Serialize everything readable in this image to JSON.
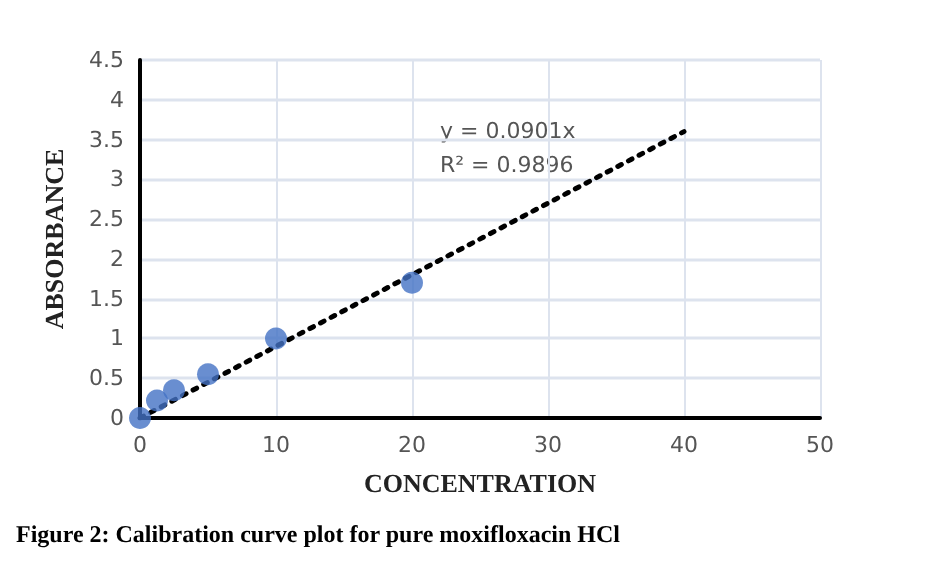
{
  "chart_data": {
    "type": "scatter",
    "xlabel": "CONCENTRATION",
    "ylabel": "ABSORBANCE",
    "xlim": [
      0,
      50
    ],
    "xticks": [
      0,
      10,
      20,
      30,
      40,
      50
    ],
    "ylim": [
      0,
      4.5
    ],
    "yticks": [
      0,
      0.5,
      1,
      1.5,
      2,
      2.5,
      3,
      3.5,
      4,
      4.5
    ],
    "grid": true,
    "marker": "circle",
    "series": [
      {
        "color": "#4472c4",
        "x": [
          0,
          1.25,
          2.5,
          5,
          10,
          20
        ],
        "values": [
          0,
          0.22,
          0.35,
          0.55,
          1.0,
          1.7
        ]
      },
      {
        "type": "line",
        "color": "#000000",
        "line_style": "dotted",
        "marker": "none",
        "x": [
          0,
          40
        ],
        "values": [
          0,
          3.6
        ]
      }
    ],
    "annotations": [
      "y = 0.0901x",
      "R² = 0.9896",
      "Figure 2: Calibration curve plot for pure moxifloxacin HCl"
    ]
  }
}
